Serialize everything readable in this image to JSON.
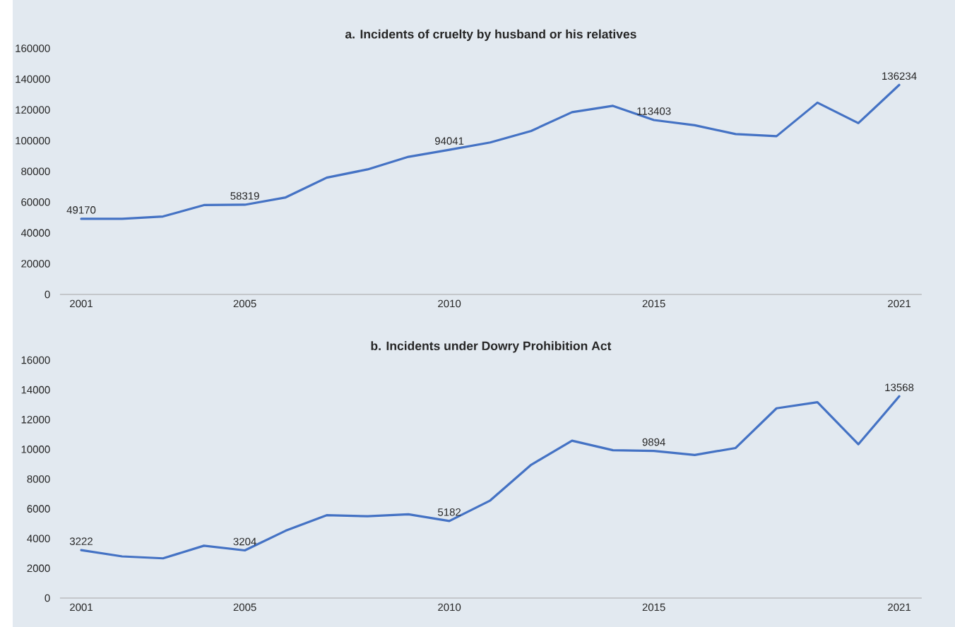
{
  "chart_data": [
    {
      "type": "line",
      "title": "a. Incidents of cruelty by husband or his relatives",
      "categories": [
        "2001",
        null,
        null,
        null,
        "2005",
        null,
        null,
        null,
        null,
        "2010",
        null,
        null,
        null,
        null,
        "2015",
        null,
        null,
        null,
        null,
        null,
        "2021"
      ],
      "values": [
        49170,
        49200,
        50700,
        58100,
        58319,
        63100,
        75900,
        81300,
        89500,
        94041,
        98800,
        106300,
        118500,
        122600,
        113403,
        110000,
        104300,
        102900,
        124700,
        111400,
        136234
      ],
      "value_labels": [
        "49170",
        null,
        null,
        null,
        "58319",
        null,
        null,
        null,
        null,
        "94041",
        null,
        null,
        null,
        null,
        "113403",
        null,
        null,
        null,
        null,
        null,
        "136234"
      ],
      "color": "#4472c4",
      "ylim": [
        0,
        160000
      ],
      "yticks": [
        0,
        20000,
        40000,
        60000,
        80000,
        100000,
        120000,
        140000,
        160000
      ]
    },
    {
      "type": "line",
      "title": "b. Incidents under Dowry Prohibition Act",
      "categories": [
        "2001",
        null,
        null,
        null,
        "2005",
        null,
        null,
        null,
        null,
        "2010",
        null,
        null,
        null,
        null,
        "2015",
        null,
        null,
        null,
        null,
        null,
        "2021"
      ],
      "values": [
        3222,
        2800,
        2670,
        3520,
        3204,
        4530,
        5570,
        5500,
        5630,
        5182,
        6560,
        8960,
        10580,
        9940,
        9894,
        9620,
        10090,
        12760,
        13170,
        10340,
        13568
      ],
      "value_labels": [
        "3222",
        null,
        null,
        null,
        "3204",
        null,
        null,
        null,
        null,
        "5182",
        null,
        null,
        null,
        null,
        "9894",
        null,
        null,
        null,
        null,
        null,
        "13568"
      ],
      "color": "#4472c4",
      "ylim": [
        0,
        16000
      ],
      "yticks": [
        0,
        2000,
        4000,
        6000,
        8000,
        10000,
        12000,
        14000,
        16000
      ]
    }
  ]
}
